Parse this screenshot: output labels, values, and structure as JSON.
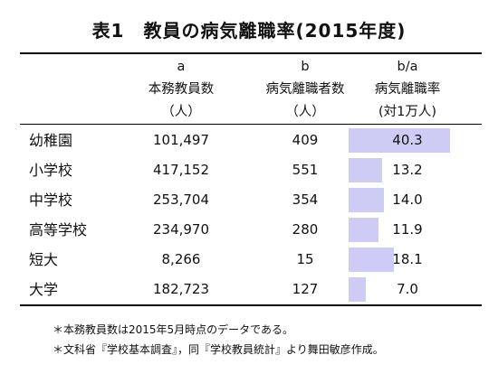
{
  "title": "表1　教員の病気離職率(2015年度)",
  "columns": [
    {
      "key": "a",
      "label": "本務教員数",
      "unit": "（人）"
    },
    {
      "key": "b",
      "label": "病気離職者数",
      "unit": "（人）"
    },
    {
      "key": "b/a",
      "label": "病気離職率",
      "unit": "(対1万人)"
    }
  ],
  "rows": [
    {
      "label": "幼稚園",
      "staff": "101,497",
      "sick": "409",
      "rate": "40.3"
    },
    {
      "label": "小学校",
      "staff": "417,152",
      "sick": "551",
      "rate": "13.2"
    },
    {
      "label": "中学校",
      "staff": "253,704",
      "sick": "354",
      "rate": "14.0"
    },
    {
      "label": "高等学校",
      "staff": "234,970",
      "sick": "280",
      "rate": "11.9"
    },
    {
      "label": "短大",
      "staff": "8,266",
      "sick": "15",
      "rate": "18.1"
    },
    {
      "label": "大学",
      "staff": "182,723",
      "sick": "127",
      "rate": "7.0"
    }
  ],
  "notes": [
    "＊本務教員数は2015年5月時点のデータである。",
    "＊文科省『学校基本調査』，同『学校教員統計』より舞田敏彦作成。"
  ],
  "colors": {
    "bar": "#ccccf5",
    "rule": "#000000"
  },
  "chart_data": {
    "type": "table",
    "title": "表1　教員の病気離職率(2015年度)",
    "categories": [
      "幼稚園",
      "小学校",
      "中学校",
      "高等学校",
      "短大",
      "大学"
    ],
    "series": [
      {
        "name": "本務教員数",
        "values": [
          101497,
          417152,
          253704,
          234970,
          8266,
          182723
        ]
      },
      {
        "name": "病気離職者数",
        "values": [
          409,
          551,
          354,
          280,
          15,
          127
        ]
      },
      {
        "name": "病気離職率",
        "values": [
          40.3,
          13.2,
          14.0,
          11.9,
          18.1,
          7.0
        ]
      }
    ],
    "bar_series": "病気離職率",
    "bar_max": 40.3
  }
}
